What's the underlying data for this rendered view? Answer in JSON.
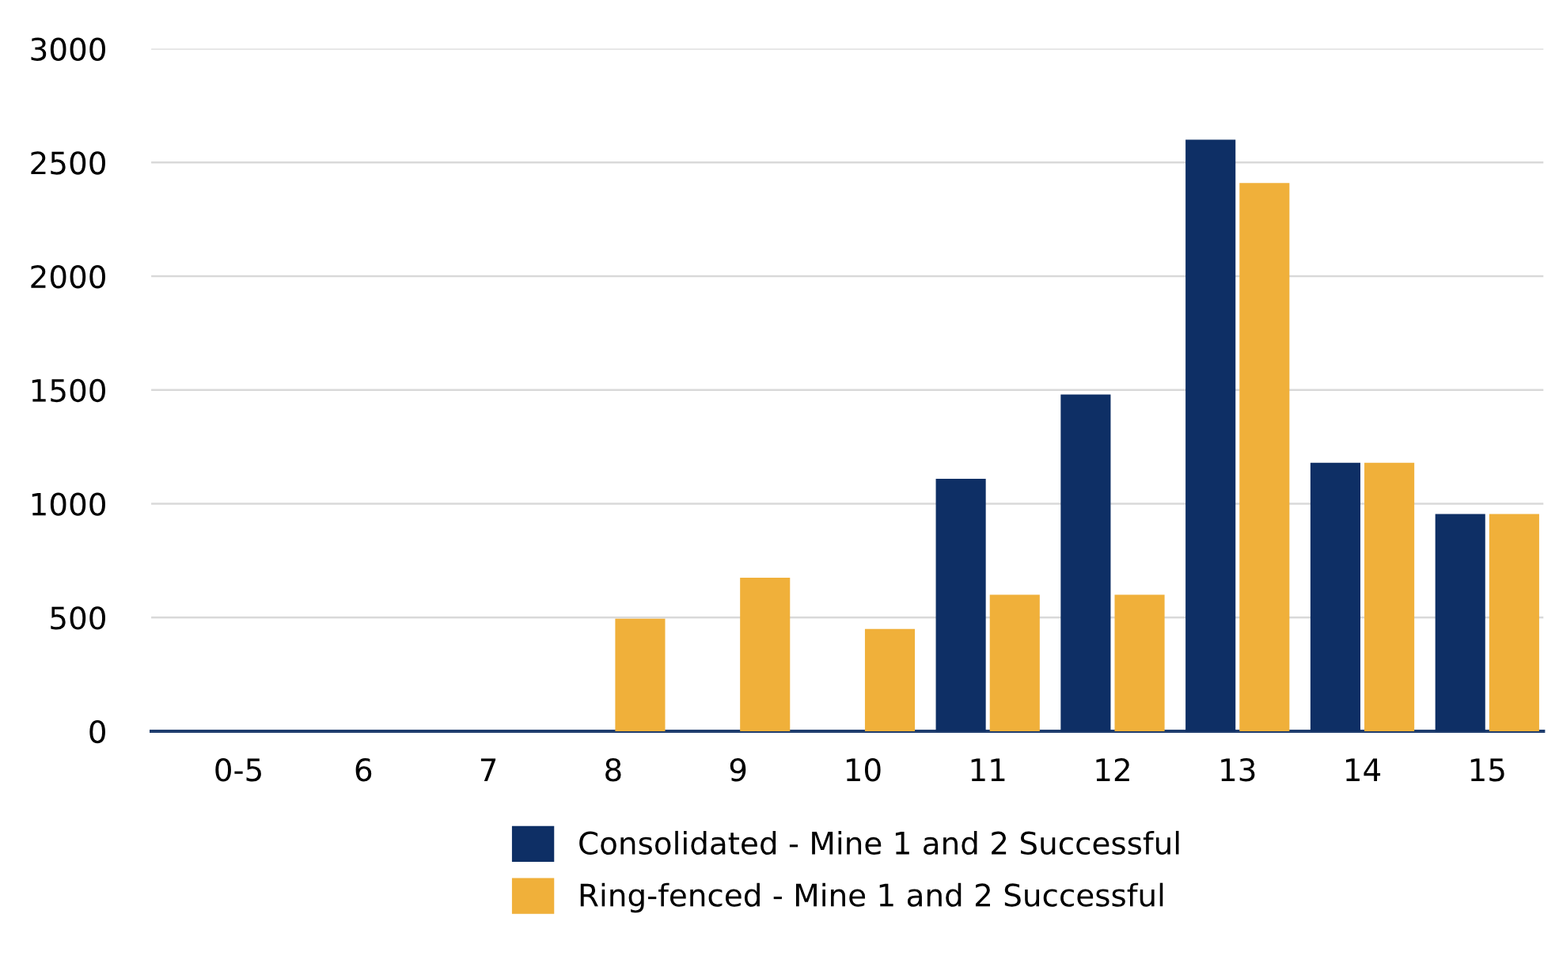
{
  "chart_data": {
    "type": "bar",
    "categories": [
      "0-5",
      "6",
      "7",
      "8",
      "9",
      "10",
      "11",
      "12",
      "13",
      "14",
      "15"
    ],
    "series": [
      {
        "name": "Consolidated - Mine 1 and 2 Successful",
        "color": "#0e2f65",
        "values": [
          0,
          0,
          0,
          0,
          0,
          0,
          1110,
          1480,
          2600,
          1180,
          955
        ]
      },
      {
        "name": "Ring-fenced - Mine 1 and 2 Successful",
        "color": "#f0b03a",
        "values": [
          0,
          0,
          0,
          495,
          675,
          450,
          600,
          600,
          2410,
          1180,
          955
        ]
      }
    ],
    "ylim": [
      0,
      3000
    ],
    "yticks": [
      0,
      500,
      1000,
      1500,
      2000,
      2500,
      3000
    ],
    "grid": "y",
    "legend": "bottom"
  }
}
